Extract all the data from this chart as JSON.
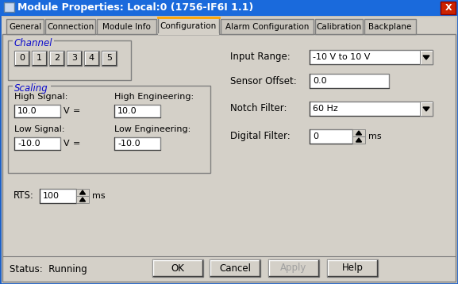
{
  "title": "Module Properties: Local:0 (1756-IF6I 1.1)",
  "title_bar_color": "#1a6adc",
  "title_text_color": "#ffffff",
  "bg_color": "#d4d0c8",
  "dialog_bg": "#d4d0c8",
  "tabs": [
    "General",
    "Connection",
    "Module Info",
    "Configuration",
    "Alarm Configuration",
    "Calibration",
    "Backplane"
  ],
  "active_tab": "Configuration",
  "channel_label": "Channel",
  "channel_buttons": [
    "0",
    "1",
    "2",
    "3",
    "4",
    "5"
  ],
  "scaling_label": "Scaling",
  "high_signal_label": "High Signal:",
  "high_signal_value": "10.0",
  "high_signal_unit": "V",
  "high_eng_label": "High Engineering:",
  "high_eng_value": "10.0",
  "low_signal_label": "Low Signal:",
  "low_signal_value": "-10.0",
  "low_signal_unit": "V",
  "low_eng_label": "Low Engineering:",
  "low_eng_value": "-10.0",
  "equals_sign": "=",
  "rts_label": "RTS:",
  "rts_value": "100",
  "rts_unit": "ms",
  "input_range_label": "Input Range:",
  "input_range_value": "-10 V to 10 V",
  "sensor_offset_label": "Sensor Offset:",
  "sensor_offset_value": "0.0",
  "notch_filter_label": "Notch Filter:",
  "notch_filter_value": "60 Hz",
  "digital_filter_label": "Digital Filter:",
  "digital_filter_value": "0",
  "digital_filter_unit": "ms",
  "status_label": "Status:  Running",
  "buttons": [
    "OK",
    "Cancel",
    "Apply",
    "Help"
  ],
  "field_bg": "#ffffff",
  "blue_label_color": "#0a0acc",
  "tab_active_color": "#ffa500",
  "close_btn_color": "#cc2200"
}
